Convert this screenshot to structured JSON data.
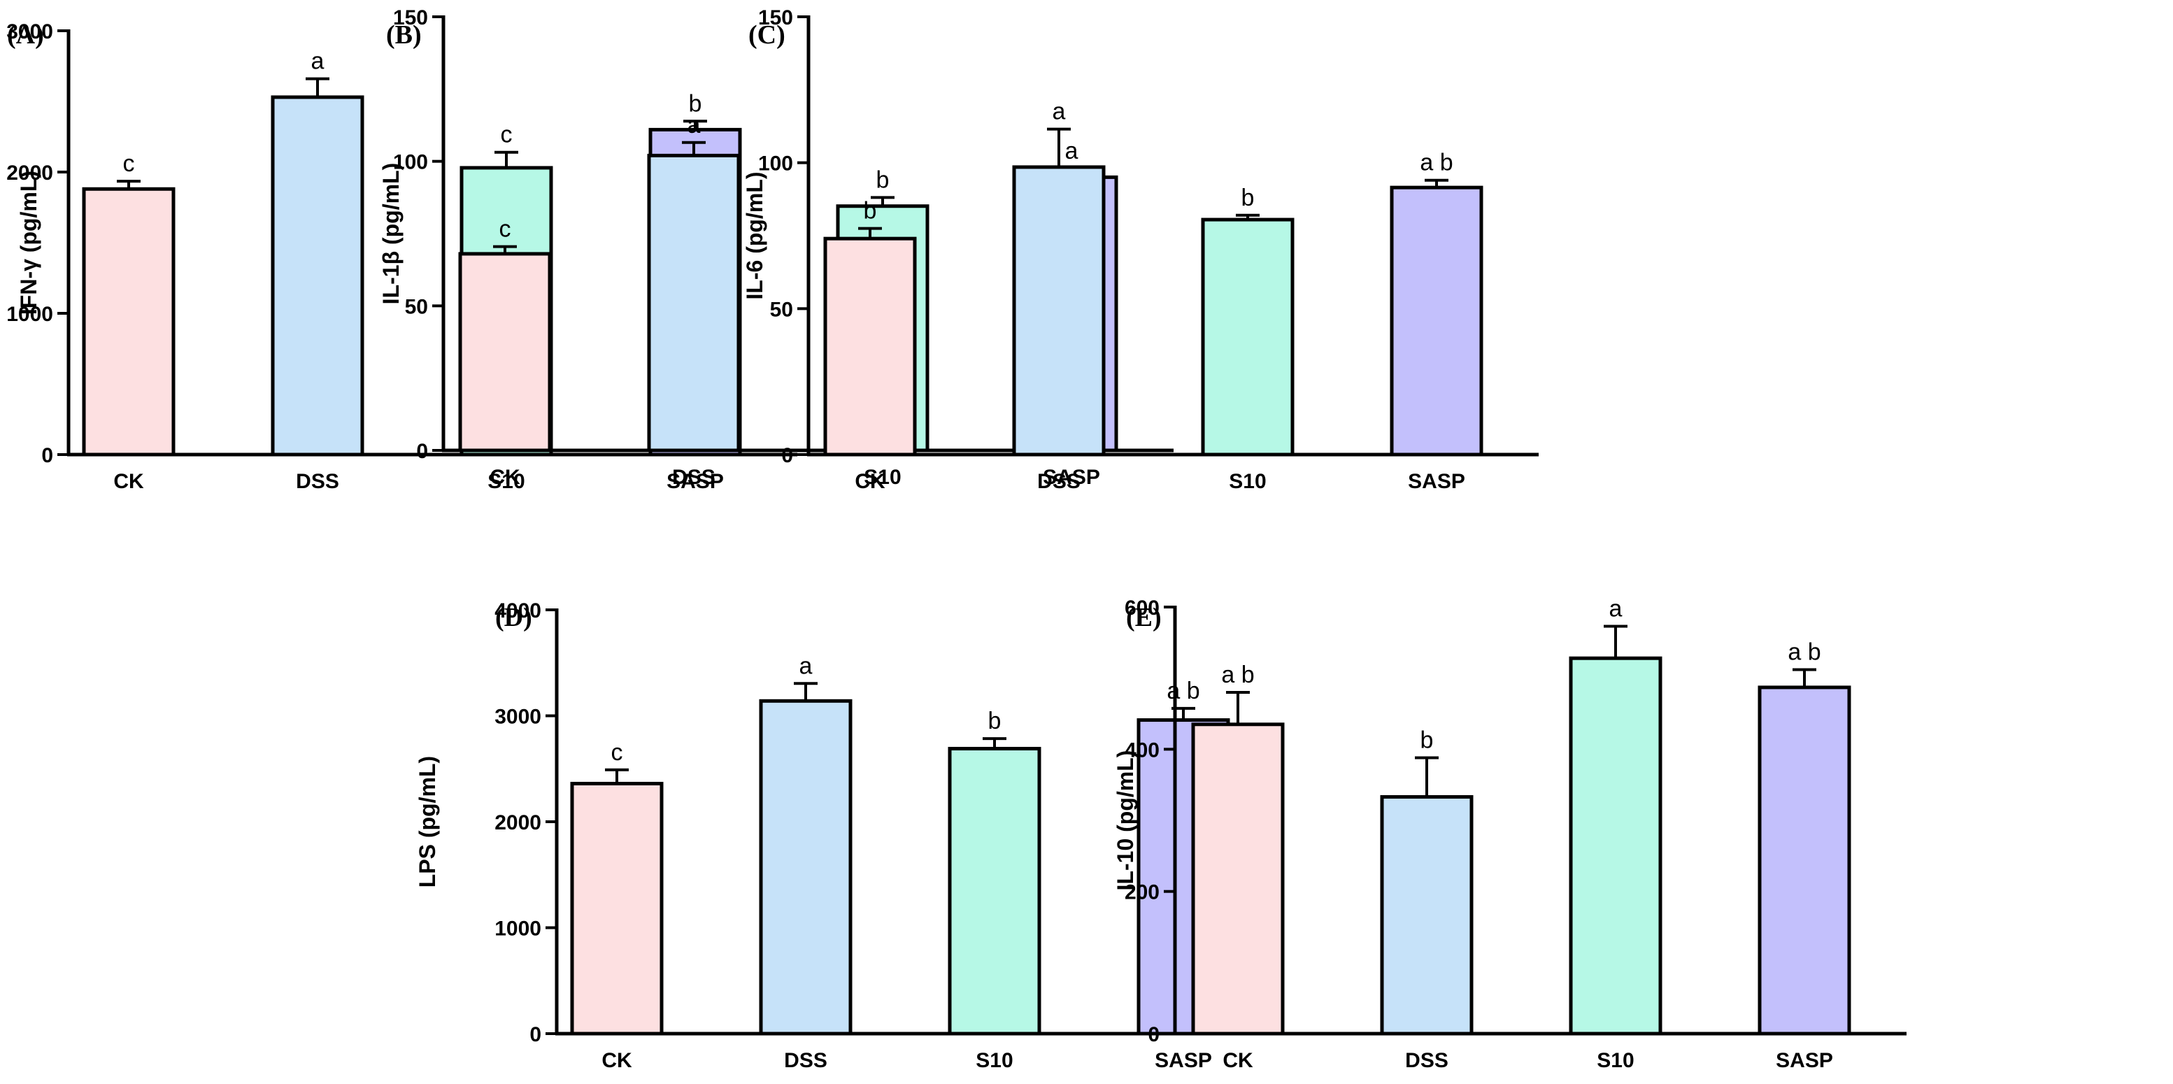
{
  "chart_data": [
    {
      "type": "bar",
      "panel": "(A)",
      "ylabel": "IFN-γ (pg/mL)",
      "ylim": [
        0,
        3000
      ],
      "yticks": [
        "0",
        "1000",
        "2000",
        "3000"
      ],
      "categories": [
        "CK",
        "DSS",
        "S10",
        "SASP"
      ],
      "values": [
        1880,
        2530,
        2030,
        2300
      ],
      "errors": [
        55,
        130,
        110,
        60
      ],
      "letters": [
        "c",
        "a",
        "c",
        "b"
      ]
    },
    {
      "type": "bar",
      "panel": "(B)",
      "ylabel": "IL-1β (pg/mL)",
      "ylim": [
        0,
        150
      ],
      "yticks": [
        "0",
        "50",
        "100",
        "150"
      ],
      "categories": [
        "CK",
        "DSS",
        "S10",
        "SASP"
      ],
      "values": [
        68,
        102,
        84.5,
        94.5
      ],
      "errors": [
        2.5,
        4.5,
        3,
        3
      ],
      "letters": [
        "c",
        "a",
        "b",
        "a"
      ]
    },
    {
      "type": "bar",
      "panel": "(C)",
      "ylabel": "IL-6 (pg/mL)",
      "ylim": [
        0,
        150
      ],
      "yticks": [
        "0",
        "50",
        "100",
        "150"
      ],
      "categories": [
        "CK",
        "DSS",
        "S10",
        "SASP"
      ],
      "values": [
        74,
        98.5,
        80.5,
        91.5
      ],
      "errors": [
        3.5,
        13,
        1.5,
        2.5
      ],
      "letters": [
        "b",
        "a",
        "b",
        "a b"
      ]
    },
    {
      "type": "bar",
      "panel": "(D)",
      "ylabel": "LPS (pg/mL)",
      "ylim": [
        0,
        4000
      ],
      "yticks": [
        "0",
        "1000",
        "2000",
        "3000",
        "4000"
      ],
      "categories": [
        "CK",
        "DSS",
        "S10",
        "SASP"
      ],
      "values": [
        2360,
        3140,
        2690,
        2960
      ],
      "errors": [
        130,
        165,
        95,
        110
      ],
      "letters": [
        "c",
        "a",
        "b",
        "a b"
      ]
    },
    {
      "type": "bar",
      "panel": "(E)",
      "ylabel": "IL-10 (pg/mL)",
      "ylim": [
        0,
        600
      ],
      "yticks": [
        "0",
        "200",
        "400",
        "600"
      ],
      "categories": [
        "CK",
        "DSS",
        "S10",
        "SASP"
      ],
      "values": [
        435,
        333,
        528,
        487
      ],
      "errors": [
        45,
        55,
        45,
        25
      ],
      "letters": [
        "a b",
        "b",
        "a",
        "a b"
      ]
    }
  ],
  "colors": {
    "CK": "#fde0e1",
    "DSS": "#c6e2f9",
    "S10": "#b6f8e6",
    "SASP": "#c3c0fc",
    "stroke": "#000000"
  }
}
